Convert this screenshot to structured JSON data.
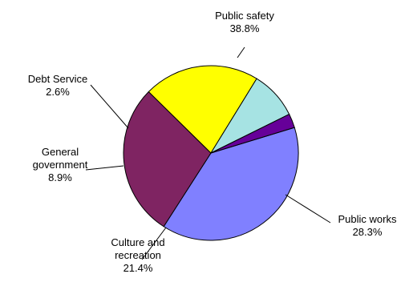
{
  "chart_data": {
    "type": "pie",
    "start_angle_deg": -17,
    "direction": "clockwise",
    "slices": [
      {
        "name_lines": [
          "Public safety"
        ],
        "value": 38.8,
        "value_label": "38.8%",
        "color": "#8080ff"
      },
      {
        "name_lines": [
          "Public works"
        ],
        "value": 28.3,
        "value_label": "28.3%",
        "color": "#7f2462"
      },
      {
        "name_lines": [
          "Culture and",
          "recreation"
        ],
        "value": 21.4,
        "value_label": "21.4%",
        "color": "#ffff00"
      },
      {
        "name_lines": [
          "General",
          "government"
        ],
        "value": 8.9,
        "value_label": "8.9%",
        "color": "#a6e3e3"
      },
      {
        "name_lines": [
          "Debt Service"
        ],
        "value": 2.6,
        "value_label": "2.6%",
        "color": "#660099"
      }
    ],
    "legend": "none"
  }
}
